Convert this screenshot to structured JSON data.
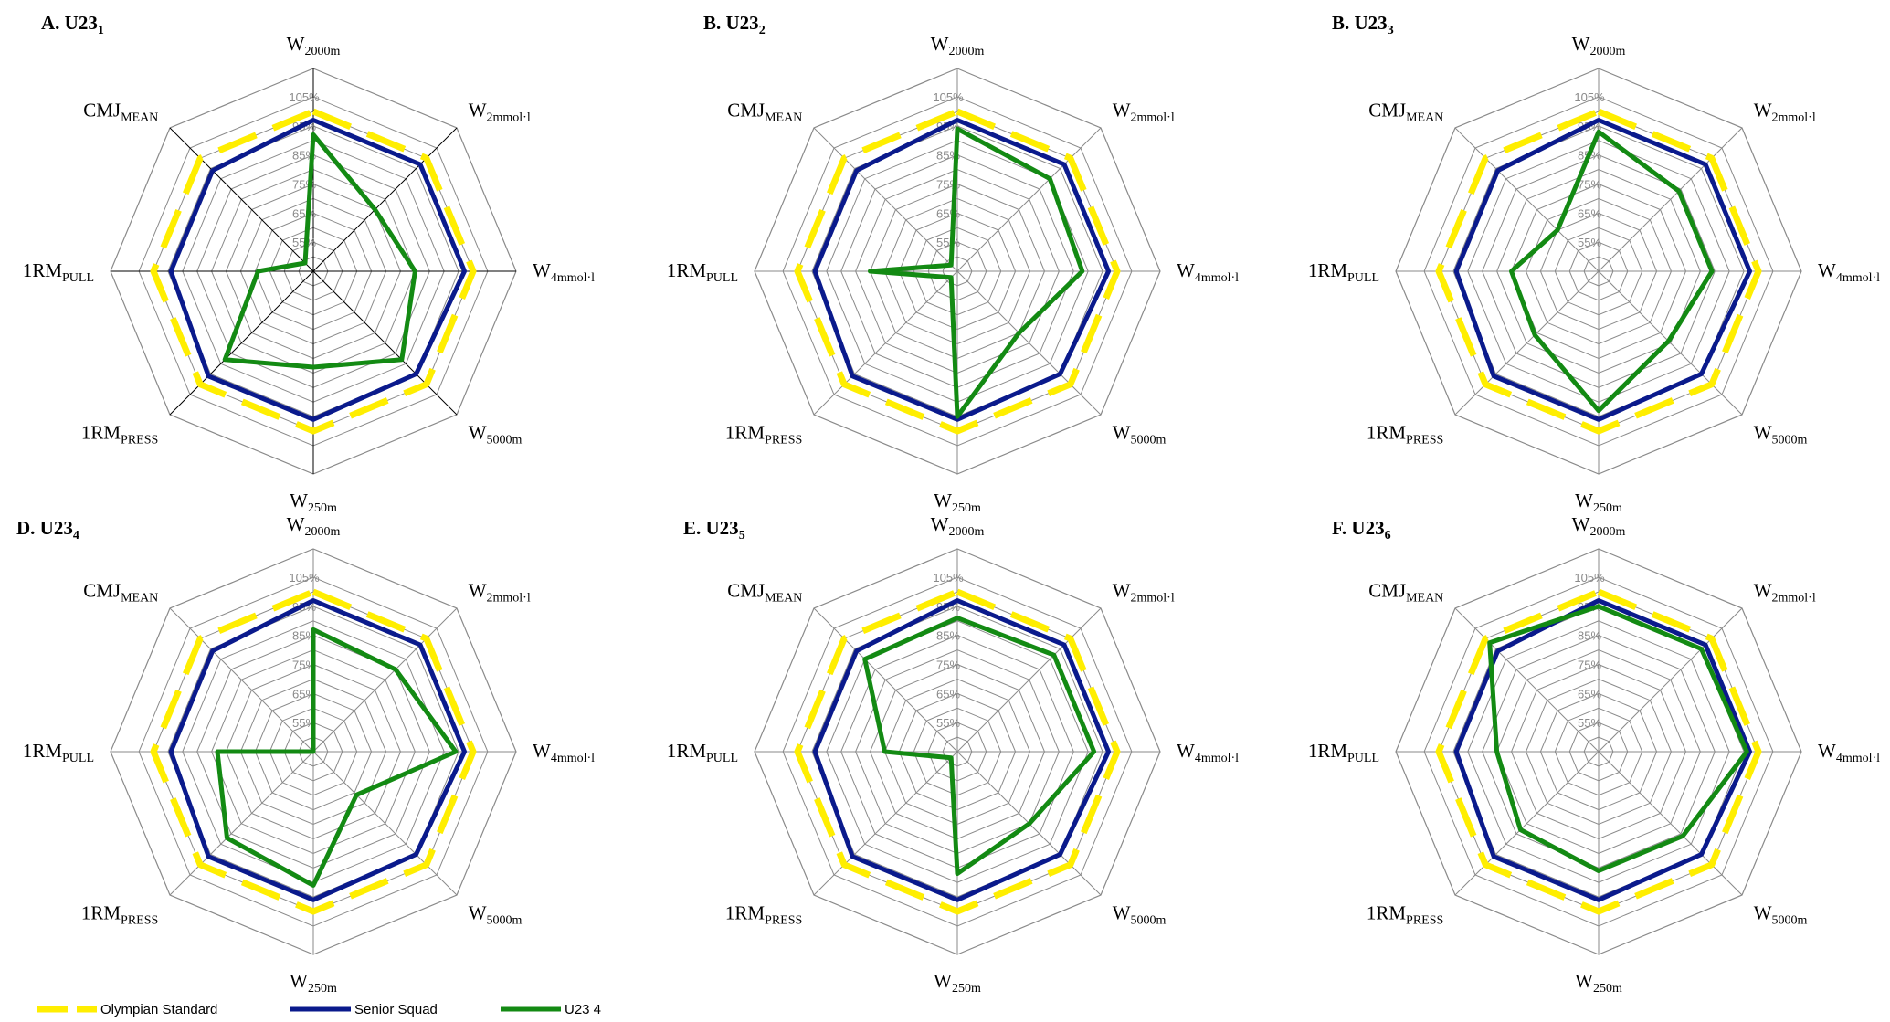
{
  "colors": {
    "olympian": "#ffee00",
    "senior": "#0a1a8c",
    "u23": "#138a13",
    "grid": "#8a8a8a",
    "tick": "#8a8a8a"
  },
  "axis_labels": [
    {
      "base": "W",
      "sub": "2000m"
    },
    {
      "base": "W",
      "sub": "2mmol·l"
    },
    {
      "base": "W",
      "sub": "4mmol·l"
    },
    {
      "base": "W",
      "sub": "5000m"
    },
    {
      "base": "W",
      "sub": "250m"
    },
    {
      "base": "1RM",
      "sub": "PRESS"
    },
    {
      "base": "1RM",
      "sub": "PULL"
    },
    {
      "base": "CMJ",
      "sub": "MEAN"
    }
  ],
  "legend": [
    {
      "key": "olympian",
      "label": "Olympian Standard"
    },
    {
      "key": "senior",
      "label": "Senior Squad"
    },
    {
      "key": "u23",
      "label": "U23 4"
    }
  ],
  "chart_data": [
    {
      "type": "radar",
      "title": "A. U23",
      "title_sub": "1",
      "tick_labels": [
        "105%",
        "95%",
        "85%",
        "75%",
        "65%",
        "55%"
      ],
      "rlim": [
        45,
        105
      ],
      "categories": [
        "W2000m",
        "W2mmol·l",
        "W4mmol·l",
        "W5000m",
        "W250m",
        "1RMPRESS",
        "1RMPULL",
        "CMJMEAN"
      ],
      "series": [
        {
          "key": "olympian",
          "values": [
            100,
            100,
            100,
            100,
            100,
            100,
            100,
            100
          ]
        },
        {
          "key": "senior",
          "values": [
            97,
            97,
            97,
            95,
            96,
            96,
            94,
            94
          ]
        },
        {
          "key": "u23",
          "values": [
            92,
            75,
            80,
            88,
            78,
            88,
            64,
            49
          ]
        }
      ]
    },
    {
      "type": "radar",
      "title": "B. U23",
      "title_sub": "2",
      "tick_labels": [
        "105%",
        "95%",
        "85%",
        "75%",
        "65%",
        "55%"
      ],
      "rlim": [
        45,
        105
      ],
      "categories": [
        "W2000m",
        "W2mmol·l",
        "W4mmol·l",
        "W5000m",
        "W250m",
        "1RMPRESS",
        "1RMPULL",
        "CMJMEAN"
      ],
      "series": [
        {
          "key": "olympian",
          "values": [
            100,
            100,
            100,
            100,
            100,
            100,
            100,
            100
          ]
        },
        {
          "key": "senior",
          "values": [
            97,
            97,
            97,
            95,
            96,
            96,
            94,
            94
          ]
        },
        {
          "key": "u23",
          "values": [
            94,
            90,
            88,
            75,
            95,
            48,
            75,
            48
          ]
        }
      ]
    },
    {
      "type": "radar",
      "title": "B. U23",
      "title_sub": "3",
      "tick_labels": [
        "105%",
        "95%",
        "85%",
        "75%",
        "65%",
        "55%"
      ],
      "rlim": [
        45,
        105
      ],
      "categories": [
        "W2000m",
        "W2mmol·l",
        "W4mmol·l",
        "W5000m",
        "W250m",
        "1RMPRESS",
        "1RMPULL",
        "CMJMEAN"
      ],
      "series": [
        {
          "key": "olympian",
          "values": [
            100,
            100,
            100,
            100,
            100,
            100,
            100,
            100
          ]
        },
        {
          "key": "senior",
          "values": [
            97,
            97,
            97,
            95,
            96,
            96,
            94,
            94
          ]
        },
        {
          "key": "u23",
          "values": [
            93,
            84,
            84,
            79,
            93,
            76,
            75,
            65
          ]
        }
      ]
    },
    {
      "type": "radar",
      "title": "D. U23",
      "title_sub": "4",
      "tick_labels": [
        "105%",
        "95%",
        "85%",
        "75%",
        "65%",
        "55%"
      ],
      "rlim": [
        45,
        105
      ],
      "categories": [
        "W2000m",
        "W2mmol·l",
        "W4mmol·l",
        "W5000m",
        "W250m",
        "1RMPRESS",
        "1RMPULL",
        "CMJMEAN"
      ],
      "series": [
        {
          "key": "olympian",
          "values": [
            100,
            100,
            100,
            100,
            100,
            100,
            100,
            100
          ]
        },
        {
          "key": "senior",
          "values": [
            97,
            97,
            97,
            95,
            96,
            96,
            94,
            94
          ]
        },
        {
          "key": "u23",
          "values": [
            87,
            85,
            94,
            66,
            91,
            87,
            78,
            45
          ]
        }
      ]
    },
    {
      "type": "radar",
      "title": "E. U23",
      "title_sub": "5",
      "tick_labels": [
        "105%",
        "95%",
        "85%",
        "75%",
        "65%",
        "55%"
      ],
      "rlim": [
        45,
        105
      ],
      "categories": [
        "W2000m",
        "W2mmol·l",
        "W4mmol·l",
        "W5000m",
        "W250m",
        "1RMPRESS",
        "1RMPULL",
        "CMJMEAN"
      ],
      "series": [
        {
          "key": "olympian",
          "values": [
            100,
            100,
            100,
            100,
            100,
            100,
            100,
            100
          ]
        },
        {
          "key": "senior",
          "values": [
            97,
            97,
            97,
            95,
            96,
            96,
            94,
            94
          ]
        },
        {
          "key": "u23",
          "values": [
            91,
            92,
            92,
            80,
            87,
            48,
            70,
            90
          ]
        }
      ]
    },
    {
      "type": "radar",
      "title": "F. U23",
      "title_sub": "6",
      "tick_labels": [
        "105%",
        "95%",
        "85%",
        "75%",
        "65%",
        "55%"
      ],
      "rlim": [
        45,
        105
      ],
      "categories": [
        "W2000m",
        "W2mmol·l",
        "W4mmol·l",
        "W5000m",
        "W250m",
        "1RMPRESS",
        "1RMPULL",
        "CMJMEAN"
      ],
      "series": [
        {
          "key": "olympian",
          "values": [
            100,
            100,
            100,
            100,
            100,
            100,
            100,
            100
          ]
        },
        {
          "key": "senior",
          "values": [
            97,
            97,
            97,
            95,
            96,
            96,
            94,
            94
          ]
        },
        {
          "key": "u23",
          "values": [
            95,
            95,
            96,
            86,
            86,
            83,
            80,
            98
          ]
        }
      ]
    }
  ]
}
